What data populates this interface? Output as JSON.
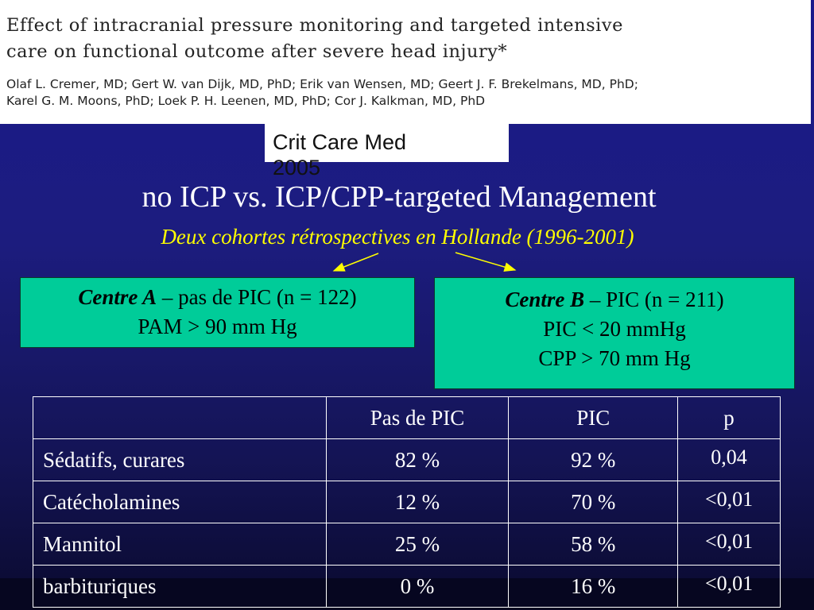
{
  "paper": {
    "title_line1": "Effect of intracranial pressure monitoring and targeted intensive",
    "title_line2": "care on functional outcome after severe head injury*",
    "authors_line1": "Olaf L. Cremer, MD; Gert W. van Dijk, MD, PhD; Erik van Wensen, MD; Geert J. F. Brekelmans, MD, PhD;",
    "authors_line2": "Karel G. M. Moons, PhD; Loek P. H. Leenen, MD, PhD; Cor J. Kalkman, MD, PhD"
  },
  "citation": "Crit Care Med\n2005",
  "slide": {
    "title": "no ICP vs. ICP/CPP-targeted Management",
    "subtitle": "Deux cohortes rétrospectives en Hollande (1996-2001)"
  },
  "centre_a": {
    "name": "Centre A",
    "desc": " – pas de PIC (n = 122)",
    "line2": "PAM > 90 mm Hg"
  },
  "centre_b": {
    "name": "Centre B",
    "desc": " – PIC (n = 211)",
    "line2": "PIC < 20 mmHg",
    "line3": "CPP > 70 mm Hg"
  },
  "table": {
    "headers": [
      "",
      "Pas de PIC",
      "PIC",
      "p"
    ],
    "rows": [
      [
        "Sédatifs, curares",
        "82 %",
        "92 %",
        "0,04"
      ],
      [
        "Catécholamines",
        "12 %",
        "70 %",
        "<0,01"
      ],
      [
        "Mannitol",
        "25 %",
        "58 %",
        "<0,01"
      ],
      [
        "barbituriques",
        "0 %",
        "16 %",
        "<0,01"
      ]
    ]
  },
  "colors": {
    "background": "#1a1a8c",
    "box_fill": "#00cc99",
    "subtitle": "#ffff00",
    "arrows": "#ffff00"
  }
}
